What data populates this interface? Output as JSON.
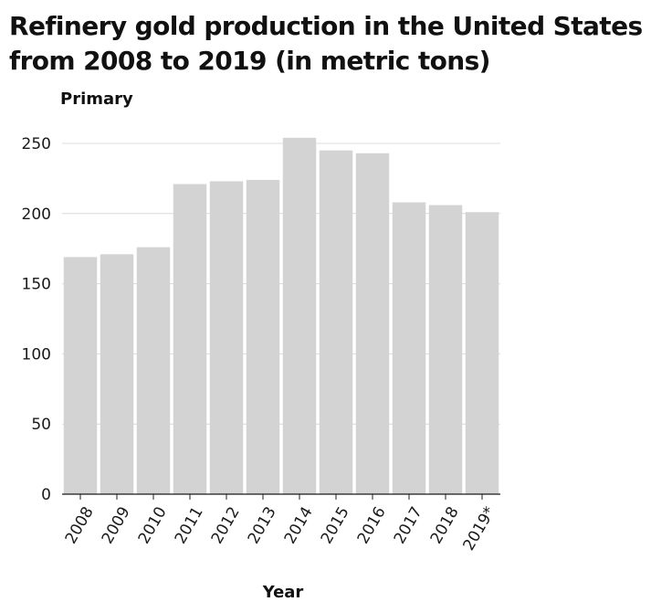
{
  "chart_data": {
    "type": "bar",
    "title": "Refinery gold production in the United States\nfrom 2008 to 2019 (in metric tons)",
    "xlabel": "Year",
    "ylabel": "Primary",
    "categories": [
      "2008",
      "2009",
      "2010",
      "2011",
      "2012",
      "2013",
      "2014",
      "2015",
      "2016",
      "2017",
      "2018",
      "2019*"
    ],
    "values": [
      169,
      171,
      176,
      221,
      223,
      224,
      254,
      245,
      243,
      208,
      206,
      201
    ],
    "ylim": [
      0,
      250
    ],
    "yticks": [
      0,
      50,
      100,
      150,
      200,
      250
    ],
    "grid": true,
    "bar_color": "#d3d3d3",
    "grid_color": "#dcdcdc"
  }
}
